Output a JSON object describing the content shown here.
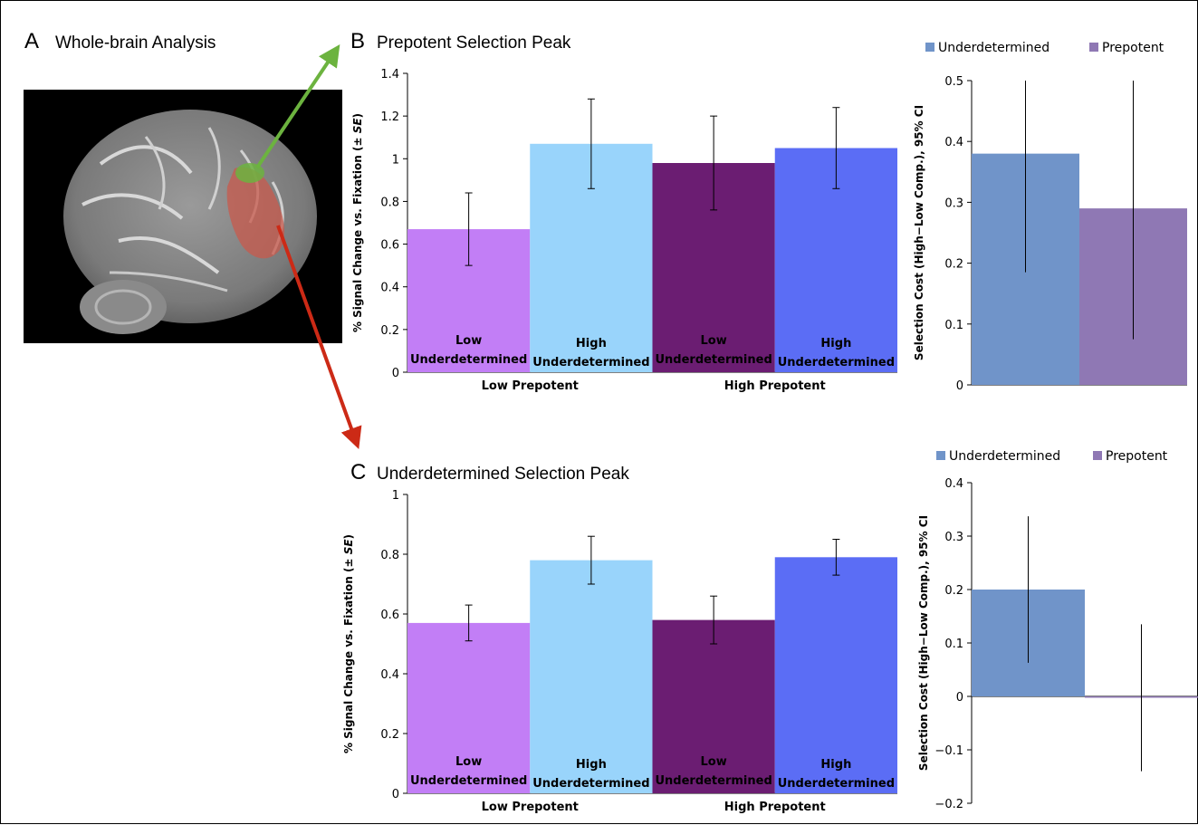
{
  "panels": {
    "a": {
      "letter": "A",
      "title": "Whole-brain Analysis"
    },
    "b": {
      "letter": "B",
      "title": "Prepotent Selection Peak"
    },
    "c": {
      "letter": "C",
      "title": "Underdetermined Selection Peak"
    }
  },
  "colors": {
    "low_underdetermined": "#c27ef6",
    "high_underdetermined": "#99d4fb",
    "low_underdetermined_high_prepotent": "#6b1d72",
    "high_underdetermined_high_prepotent": "#5b6df5",
    "underdetermined": "#7094c9",
    "prepotent": "#8f78b4",
    "arrow_green": "#6cb33f",
    "arrow_red": "#cc2a16"
  },
  "chart_data": [
    {
      "id": "b_main",
      "type": "bar",
      "categories": [
        [
          "Low",
          "Underdetermined"
        ],
        [
          "High",
          "Underdetermined"
        ],
        [
          "Low",
          "Underdetermined"
        ],
        [
          "High",
          "Underdetermined"
        ]
      ],
      "groups": [
        {
          "label": "Low Prepotent",
          "span": [
            0,
            1
          ]
        },
        {
          "label": "High Prepotent",
          "span": [
            2,
            3
          ]
        }
      ],
      "values": [
        0.67,
        1.07,
        0.98,
        1.05
      ],
      "error_low": [
        0.5,
        0.86,
        0.76,
        0.86
      ],
      "error_high": [
        0.84,
        1.28,
        1.2,
        1.24
      ],
      "ylabel_parts": [
        "% Signal Change vs. Fixation (± ",
        "SE",
        ")"
      ],
      "ylim": [
        0,
        1.4
      ],
      "yticks": [
        0,
        0.2,
        0.4,
        0.6,
        0.8,
        1,
        1.2,
        1.4
      ],
      "ytick_labels": [
        "0",
        "0.2",
        "0.4",
        "0.6",
        "0.8",
        "1",
        "1.2",
        "1.4"
      ]
    },
    {
      "id": "b_cost",
      "type": "bar",
      "series": [
        {
          "name": "Underdetermined",
          "value": 0.38,
          "ci": [
            0.185,
            0.5
          ]
        },
        {
          "name": "Prepotent",
          "value": 0.29,
          "ci": [
            0.075,
            0.5
          ]
        }
      ],
      "ylabel": "Selection Cost (High−Low Comp.), 95% CI",
      "ylim": [
        0,
        0.5
      ],
      "yticks": [
        0,
        0.1,
        0.2,
        0.3,
        0.4,
        0.5
      ],
      "ytick_labels": [
        "0",
        "0.1",
        "0.2",
        "0.3",
        "0.4",
        "0.5"
      ],
      "legend_position": "top"
    },
    {
      "id": "c_main",
      "type": "bar",
      "categories": [
        [
          "Low",
          "Underdetermined"
        ],
        [
          "High",
          "Underdetermined"
        ],
        [
          "Low",
          "Underdetermined"
        ],
        [
          "High",
          "Underdetermined"
        ]
      ],
      "groups": [
        {
          "label": "Low Prepotent",
          "span": [
            0,
            1
          ]
        },
        {
          "label": "High Prepotent",
          "span": [
            2,
            3
          ]
        }
      ],
      "values": [
        0.57,
        0.78,
        0.58,
        0.79
      ],
      "error_low": [
        0.51,
        0.7,
        0.5,
        0.73
      ],
      "error_high": [
        0.63,
        0.86,
        0.66,
        0.85
      ],
      "ylabel_parts": [
        "% Signal Change vs. Fixation (± ",
        "SE",
        ")"
      ],
      "ylim": [
        0,
        1
      ],
      "yticks": [
        0,
        0.2,
        0.4,
        0.6,
        0.8,
        1
      ],
      "ytick_labels": [
        "0",
        "0.2",
        "0.4",
        "0.6",
        "0.8",
        "1"
      ]
    },
    {
      "id": "c_cost",
      "type": "bar",
      "series": [
        {
          "name": "Underdetermined",
          "value": 0.2,
          "ci": [
            0.063,
            0.337
          ]
        },
        {
          "name": "Prepotent",
          "value": -0.002,
          "ci": [
            -0.14,
            0.135
          ]
        }
      ],
      "ylabel": "Selection Cost (High−Low Comp.), 95% CI",
      "ylim": [
        -0.2,
        0.4
      ],
      "yticks": [
        -0.2,
        -0.1,
        0,
        0.1,
        0.2,
        0.3,
        0.4
      ],
      "ytick_labels": [
        "−0.2",
        "−0.1",
        "0",
        "0.1",
        "0.2",
        "0.3",
        "0.4"
      ],
      "legend_position": "top"
    }
  ]
}
